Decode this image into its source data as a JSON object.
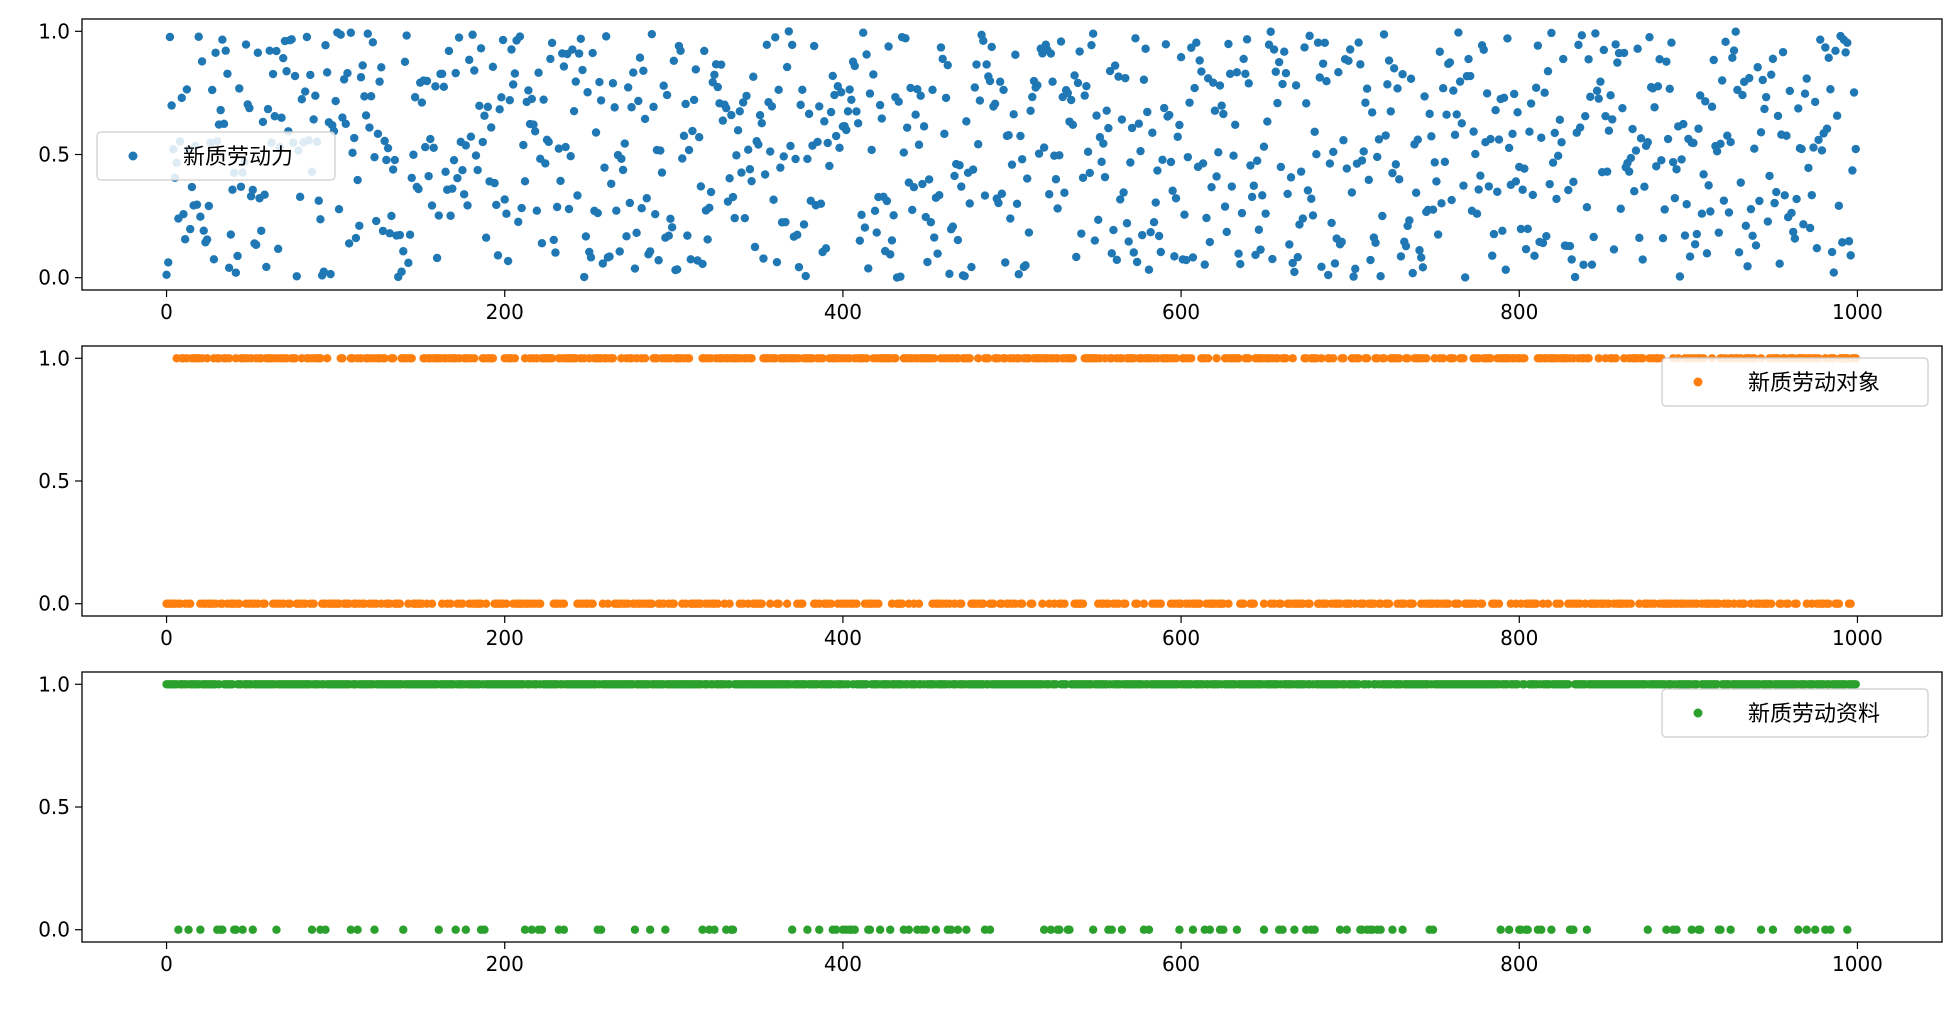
{
  "chart_data": [
    {
      "type": "scatter",
      "legend_placement": "center-left",
      "color": "#1f77b4",
      "series": [
        {
          "name": "新质劳动力",
          "seed": 7,
          "kind": "uniform",
          "n": 1000
        }
      ],
      "xlim": [
        -50,
        1050
      ],
      "ylim": [
        -0.05,
        1.05
      ],
      "xticks": [
        "0",
        "200",
        "400",
        "600",
        "800",
        "1000"
      ],
      "yticks": [
        "0.0",
        "0.5",
        "1.0"
      ],
      "grid": false
    },
    {
      "type": "scatter",
      "legend_placement": "upper-right",
      "color": "#ff7f0e",
      "series": [
        {
          "name": "新质劳动对象",
          "seed": 11,
          "kind": "binary",
          "p_one": 0.5,
          "n": 1000
        }
      ],
      "xlim": [
        -50,
        1050
      ],
      "ylim": [
        -0.05,
        1.05
      ],
      "xticks": [
        "0",
        "200",
        "400",
        "600",
        "800",
        "1000"
      ],
      "yticks": [
        "0.0",
        "0.5",
        "1.0"
      ],
      "grid": false
    },
    {
      "type": "scatter",
      "legend_placement": "upper-right",
      "color": "#2ca02c",
      "series": [
        {
          "name": "新质劳动资料",
          "seed": 23,
          "kind": "binary",
          "p_one": 0.88,
          "n": 1000
        }
      ],
      "xlim": [
        -50,
        1050
      ],
      "ylim": [
        -0.05,
        1.05
      ],
      "xticks": [
        "0",
        "200",
        "400",
        "600",
        "800",
        "1000"
      ],
      "yticks": [
        "0.0",
        "0.5",
        "1.0"
      ],
      "grid": false
    }
  ]
}
